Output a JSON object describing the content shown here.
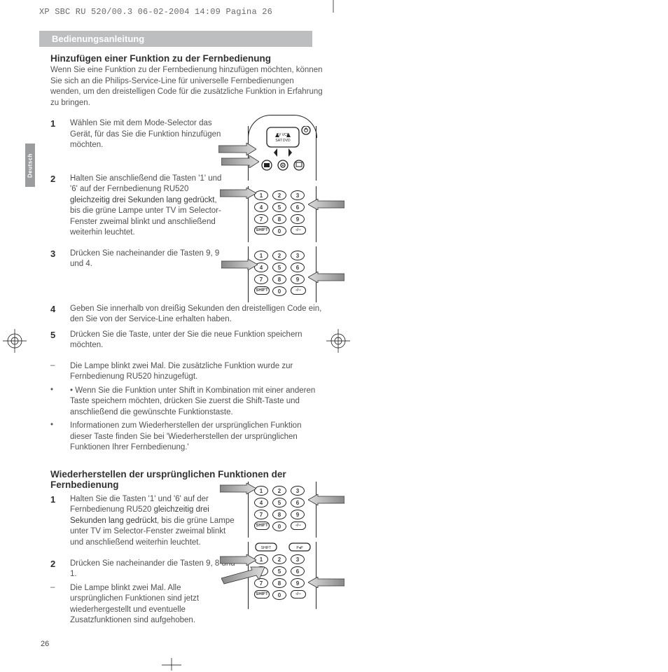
{
  "header_line": "XP SBC RU 520/00.3  06-02-2004  14:09  Pagina 26",
  "section_bar": "Bedienungsanleitung",
  "lang_tab": "Deutsch",
  "page_number": "26",
  "block1": {
    "title": "Hinzufügen einer Funktion zu der Fernbedienung",
    "intro": "Wenn Sie eine Funktion zu der Fernbedienung hinzufügen möchten, können Sie sich an die Philips-Service-Line für universelle Fernbedienungen wenden, um den dreistelligen Code für die zusätzliche Funktion in Erfahrung zu bringen.",
    "steps": [
      {
        "n": "1",
        "t": "Wählen Sie mit dem Mode-Selector das Gerät, für das Sie die Funktion hinzufügen möchten."
      },
      {
        "n": "2",
        "t": "Halten Sie anschließend die Tasten '1' und '6' auf der Fernbedienung RU520 <b>gleichzeitig drei Sekunden lang gedrückt</b>, bis die grüne Lampe unter TV im Selector-Fenster zweimal blinkt und anschließend weiterhin leuchtet."
      },
      {
        "n": "3",
        "t": "Drücken Sie nacheinander die Tasten 9, 9 und 4."
      },
      {
        "n": "4",
        "t": "Geben Sie innerhalb von dreißig Sekunden den dreistelligen Code ein, den Sie von der Service-Line erhalten haben."
      },
      {
        "n": "5",
        "t": "Drücken Sie die Taste, unter der Sie die neue Funktion speichern möchten."
      }
    ],
    "bullets": [
      {
        "m": "–",
        "t": "Die Lampe blinkt zwei Mal. Die zusätzliche Funktion wurde zur Fernbedienung RU520 hinzugefügt."
      },
      {
        "m": "•",
        "t": "• Wenn Sie die Funktion unter Shift in Kombination mit einer anderen Taste speichern möchten, drücken Sie zuerst die Shift-Taste und anschließend die gewünschte Funktionstaste."
      },
      {
        "m": "•",
        "t": "Informationen zum Wiederherstellen der ursprünglichen Funktion dieser Taste finden Sie bei 'Wiederherstellen der ursprünglichen Funktionen Ihrer Fernbedienung.'"
      }
    ]
  },
  "block2": {
    "title": "Wiederherstellen der ursprünglichen Funktionen der Fernbedienung",
    "steps": [
      {
        "n": "1",
        "t": "Halten Sie die Tasten '1' und '6' auf der Fernbedienung RU520 <b>gleichzeitig drei Sekunden lang gedrückt</b>, bis die grüne Lampe unter TV im Selector-Fenster zweimal blinkt und anschließend weiterhin leuchtet."
      },
      {
        "n": "2",
        "t": "Drücken Sie nacheinander die Tasten 9, 8 und 1."
      }
    ],
    "bullets": [
      {
        "m": "–",
        "t": "Die Lampe blinkt zwei Mal. Alle ursprünglichen Funktionen sind jetzt wiederhergestellt und eventuelle Zusatzfunktionen sind aufgehoben."
      }
    ]
  },
  "keypad": {
    "keys": [
      "1",
      "2",
      "3",
      "4",
      "5",
      "6",
      "7",
      "8",
      "9"
    ],
    "shift": "SHIFT",
    "zero": "0",
    "dash": "-/--"
  },
  "colors": {
    "ink": "#222222",
    "bar": "#bcbec0",
    "lang": "#9a9c9e",
    "text": "#505050"
  }
}
